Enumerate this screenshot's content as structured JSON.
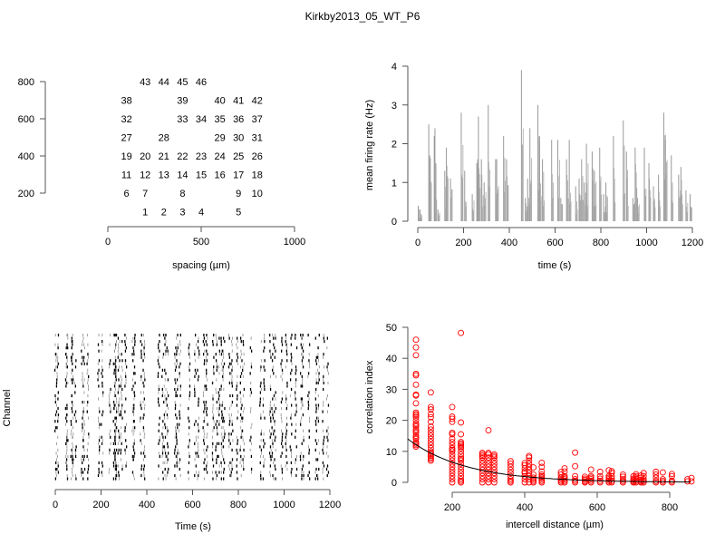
{
  "title": "Kirkby2013_05_WT_P6",
  "chart_data": [
    {
      "type": "scatter",
      "name": "electrode-layout",
      "xlabel": "spacing (µm)",
      "ylabel": "",
      "xlim": [
        0,
        1000
      ],
      "ylim": [
        200,
        800
      ],
      "xticks": [
        "0",
        "500",
        "1000"
      ],
      "yticks": [
        "200",
        "400",
        "600",
        "800"
      ],
      "points": [
        {
          "label": "1",
          "x": 200,
          "y": 100
        },
        {
          "label": "2",
          "x": 300,
          "y": 100
        },
        {
          "label": "3",
          "x": 400,
          "y": 100
        },
        {
          "label": "4",
          "x": 500,
          "y": 100
        },
        {
          "label": "5",
          "x": 700,
          "y": 100
        },
        {
          "label": "6",
          "x": 100,
          "y": 200
        },
        {
          "label": "7",
          "x": 200,
          "y": 200
        },
        {
          "label": "8",
          "x": 400,
          "y": 200
        },
        {
          "label": "9",
          "x": 700,
          "y": 200
        },
        {
          "label": "10",
          "x": 800,
          "y": 200
        },
        {
          "label": "11",
          "x": 100,
          "y": 300
        },
        {
          "label": "12",
          "x": 200,
          "y": 300
        },
        {
          "label": "13",
          "x": 300,
          "y": 300
        },
        {
          "label": "14",
          "x": 400,
          "y": 300
        },
        {
          "label": "15",
          "x": 500,
          "y": 300
        },
        {
          "label": "16",
          "x": 600,
          "y": 300
        },
        {
          "label": "17",
          "x": 700,
          "y": 300
        },
        {
          "label": "18",
          "x": 800,
          "y": 300
        },
        {
          "label": "19",
          "x": 100,
          "y": 400
        },
        {
          "label": "20",
          "x": 200,
          "y": 400
        },
        {
          "label": "21",
          "x": 300,
          "y": 400
        },
        {
          "label": "22",
          "x": 400,
          "y": 400
        },
        {
          "label": "23",
          "x": 500,
          "y": 400
        },
        {
          "label": "24",
          "x": 600,
          "y": 400
        },
        {
          "label": "25",
          "x": 700,
          "y": 400
        },
        {
          "label": "26",
          "x": 800,
          "y": 400
        },
        {
          "label": "27",
          "x": 100,
          "y": 500
        },
        {
          "label": "28",
          "x": 300,
          "y": 500
        },
        {
          "label": "29",
          "x": 600,
          "y": 500
        },
        {
          "label": "30",
          "x": 700,
          "y": 500
        },
        {
          "label": "31",
          "x": 800,
          "y": 500
        },
        {
          "label": "32",
          "x": 100,
          "y": 600
        },
        {
          "label": "33",
          "x": 400,
          "y": 600
        },
        {
          "label": "34",
          "x": 500,
          "y": 600
        },
        {
          "label": "35",
          "x": 600,
          "y": 600
        },
        {
          "label": "36",
          "x": 700,
          "y": 600
        },
        {
          "label": "37",
          "x": 800,
          "y": 600
        },
        {
          "label": "38",
          "x": 100,
          "y": 700
        },
        {
          "label": "39",
          "x": 400,
          "y": 700
        },
        {
          "label": "40",
          "x": 600,
          "y": 700
        },
        {
          "label": "41",
          "x": 700,
          "y": 700
        },
        {
          "label": "42",
          "x": 800,
          "y": 700
        },
        {
          "label": "43",
          "x": 200,
          "y": 800
        },
        {
          "label": "44",
          "x": 300,
          "y": 800
        },
        {
          "label": "45",
          "x": 400,
          "y": 800
        },
        {
          "label": "46",
          "x": 500,
          "y": 800
        }
      ]
    },
    {
      "type": "bar",
      "name": "mean-firing-rate",
      "xlabel": "time (s)",
      "ylabel": "mean firing rate (Hz)",
      "xlim": [
        0,
        1200
      ],
      "ylim": [
        0,
        4
      ],
      "xticks": [
        "0",
        "200",
        "400",
        "600",
        "800",
        "1000",
        "1200"
      ],
      "yticks": [
        "0",
        "1",
        "2",
        "3",
        "4"
      ],
      "x": [
        2,
        10,
        48,
        52,
        72,
        75,
        88,
        118,
        125,
        143,
        190,
        205,
        238,
        258,
        262,
        265,
        278,
        290,
        308,
        340,
        345,
        375,
        388,
        453,
        470,
        480,
        490,
        525,
        532,
        545,
        585,
        612,
        625,
        650,
        662,
        690,
        705,
        716,
        728,
        737,
        762,
        772,
        795,
        812,
        822,
        855,
        898,
        912,
        940,
        950,
        960,
        990,
        1010,
        1030,
        1052,
        1075,
        1082,
        1108,
        1140,
        1150,
        1172,
        1190
      ],
      "values": [
        0.4,
        0.3,
        2.5,
        1.7,
        2.2,
        2.4,
        0.3,
        1.3,
        1.9,
        1.1,
        2.8,
        1.3,
        0.7,
        1.5,
        1.6,
        2.7,
        1.6,
        1.0,
        3.0,
        1.6,
        1.6,
        2.2,
        1.6,
        3.9,
        0.6,
        1.1,
        2.4,
        3.0,
        2.2,
        1.6,
        2.1,
        2.1,
        0.6,
        1.6,
        2.1,
        0.9,
        1.1,
        1.6,
        1.0,
        2.0,
        1.8,
        1.3,
        1.9,
        0.7,
        1.0,
        2.2,
        2.6,
        1.8,
        0.6,
        1.9,
        0.6,
        1.9,
        1.5,
        0.9,
        1.2,
        2.8,
        2.1,
        1.7,
        1.2,
        1.4,
        0.8,
        0.7
      ],
      "color": "#999999"
    },
    {
      "type": "scatter",
      "name": "spike-raster",
      "xlabel": "Time (s)",
      "ylabel": "Channel",
      "xlim": [
        0,
        1200
      ],
      "xticks": [
        "0",
        "200",
        "400",
        "600",
        "800",
        "1000",
        "1200"
      ],
      "burst_times": [
        2,
        10,
        48,
        52,
        72,
        75,
        88,
        118,
        125,
        143,
        190,
        205,
        238,
        258,
        262,
        265,
        278,
        290,
        308,
        340,
        345,
        375,
        388,
        453,
        470,
        480,
        490,
        525,
        532,
        545,
        585,
        612,
        625,
        650,
        662,
        690,
        705,
        716,
        728,
        737,
        762,
        772,
        795,
        812,
        822,
        855,
        898,
        912,
        940,
        950,
        960,
        990,
        1010,
        1030,
        1052,
        1075,
        1082,
        1108,
        1140,
        1150,
        1172,
        1190
      ],
      "channels": 46,
      "color": "#000000"
    },
    {
      "type": "scatter",
      "name": "correlation-vs-distance",
      "xlabel": "intercell distance (µm)",
      "ylabel": "correlation index",
      "xlim": [
        100,
        860
      ],
      "ylim": [
        0,
        50
      ],
      "xticks": [
        "200",
        "400",
        "600",
        "800"
      ],
      "yticks": [
        "0",
        "10",
        "20",
        "30",
        "40",
        "50"
      ],
      "color": "#ff0000",
      "fit": {
        "type": "exponential",
        "a": 22.7,
        "lambda": 160
      },
      "groups": [
        {
          "d": 100,
          "values": [
            46,
            43.5,
            41,
            35,
            34.5,
            31.5,
            28.3,
            28,
            25.5,
            22.5,
            22,
            21.5,
            21,
            20,
            19,
            18.5,
            18,
            17,
            16.5,
            16,
            15,
            14.5,
            14,
            13,
            12.5,
            12,
            11.5
          ]
        },
        {
          "d": 141,
          "values": [
            29,
            24.3,
            23.5,
            22,
            21,
            19.5,
            18,
            17,
            16,
            15,
            14,
            13,
            12,
            11,
            10,
            9.5,
            9,
            8.5,
            8,
            7.5,
            7
          ]
        },
        {
          "d": 200,
          "values": [
            24.3,
            21.2,
            20.5,
            19.5,
            16,
            15.5,
            14,
            13,
            12,
            11,
            10.5,
            10,
            9,
            8,
            7,
            6,
            5,
            4,
            3,
            2,
            1,
            0
          ]
        },
        {
          "d": 224,
          "values": [
            48.2,
            19.3,
            15.5,
            13,
            12.5,
            12,
            11.5,
            11,
            10,
            9,
            8,
            7.5,
            7,
            6,
            5,
            4,
            3,
            2,
            1,
            0.5,
            0
          ]
        },
        {
          "d": 283,
          "values": [
            9.5,
            9,
            8.5,
            8,
            7,
            6,
            5,
            4,
            3,
            2,
            1,
            0
          ]
        },
        {
          "d": 300,
          "values": [
            16.8,
            9.5,
            9,
            8,
            7,
            6,
            5,
            4,
            3,
            2,
            1,
            0
          ]
        },
        {
          "d": 316,
          "values": [
            9,
            8.5,
            8,
            7,
            6,
            5,
            4,
            3,
            2,
            1,
            0
          ]
        },
        {
          "d": 361,
          "values": [
            6.8,
            6,
            5,
            4,
            3,
            2,
            1,
            0.5,
            0
          ]
        },
        {
          "d": 400,
          "values": [
            6.2,
            5.5,
            4.5,
            3.5,
            3,
            2,
            1,
            0
          ]
        },
        {
          "d": 412,
          "values": [
            8.5,
            8,
            7,
            6,
            5,
            4,
            3,
            2,
            1,
            0
          ]
        },
        {
          "d": 424,
          "values": [
            4.8,
            2.5,
            1.5,
            1,
            0.5,
            0
          ]
        },
        {
          "d": 447,
          "values": [
            6.3,
            5,
            3.5,
            2.5,
            2,
            1.5,
            1,
            0.5,
            0
          ]
        },
        {
          "d": 500,
          "values": [
            3.3,
            2.5,
            1.5,
            1,
            0.5,
            0
          ]
        },
        {
          "d": 510,
          "values": [
            4.5,
            3.5,
            2,
            1.5,
            1,
            0.5,
            0
          ]
        },
        {
          "d": 539,
          "values": [
            9.6,
            5.2,
            2,
            1,
            0.5,
            0
          ]
        },
        {
          "d": 566,
          "values": [
            1.8,
            1.2,
            0.8,
            0.3,
            0
          ]
        },
        {
          "d": 583,
          "values": [
            4.1,
            2,
            1.5,
            1,
            0.5,
            0
          ]
        },
        {
          "d": 608,
          "values": [
            3.4,
            2,
            1.2,
            0.5,
            0
          ]
        },
        {
          "d": 632,
          "values": [
            3.9,
            2,
            1.5,
            1,
            0.5,
            0
          ]
        },
        {
          "d": 640,
          "values": [
            3.6,
            3,
            2,
            1.2,
            0.5,
            0
          ]
        },
        {
          "d": 671,
          "values": [
            2.5,
            1.8,
            1,
            0.5,
            0
          ]
        },
        {
          "d": 700,
          "values": [
            2,
            1.2,
            0.8,
            0.3,
            0
          ]
        },
        {
          "d": 707,
          "values": [
            2.6,
            2,
            1.5,
            1,
            0.5,
            0
          ]
        },
        {
          "d": 721,
          "values": [
            2.2,
            1.5,
            0.8,
            0.3,
            0
          ]
        },
        {
          "d": 728,
          "values": [
            3,
            2,
            1,
            0.5,
            0
          ]
        },
        {
          "d": 762,
          "values": [
            3.4,
            2.5,
            1.5,
            0.5,
            0
          ]
        },
        {
          "d": 781,
          "values": [
            3.2,
            1,
            0.5,
            0
          ]
        },
        {
          "d": 806,
          "values": [
            2.7,
            2,
            0.5,
            0
          ]
        },
        {
          "d": 849,
          "values": [
            1,
            0.3
          ]
        },
        {
          "d": 860,
          "values": [
            1.4,
            0.3
          ]
        }
      ]
    }
  ]
}
